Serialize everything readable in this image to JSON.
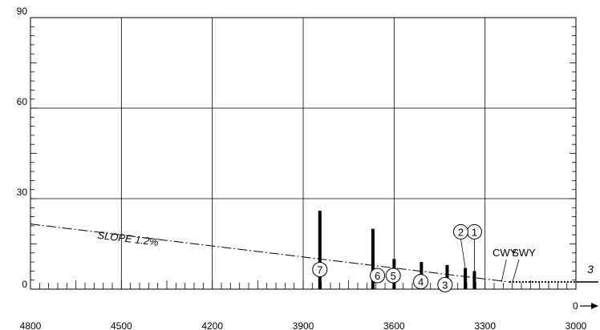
{
  "chart_data": {
    "type": "bar",
    "title": "",
    "xlabel": "",
    "ylabel": "",
    "x_reversed": true,
    "xlim": [
      4800,
      3000
    ],
    "ylim": [
      0,
      90
    ],
    "x_ticks": [
      4800,
      4500,
      4200,
      3900,
      3600,
      3300,
      3000
    ],
    "x_tick_labels": [
      "4800",
      "4500",
      "4200",
      "3900",
      "3600",
      "3300",
      "3000"
    ],
    "y_ticks": [
      0,
      30,
      60,
      90
    ],
    "y_tick_labels": [
      "0",
      "30",
      "60",
      "90"
    ],
    "grid": true,
    "slope_line": {
      "label": "SLOPE 1.2%",
      "x": [
        4800,
        3220
      ],
      "y": [
        21.6,
        2.4
      ]
    },
    "obstacles": [
      {
        "id": "1",
        "x": 3335,
        "height": 6
      },
      {
        "id": "2",
        "x": 3365,
        "height": 7
      },
      {
        "id": "3",
        "x": 3425,
        "height": 8
      },
      {
        "id": "4",
        "x": 3510,
        "height": 9
      },
      {
        "id": "5",
        "x": 3600,
        "height": 10
      },
      {
        "id": "6",
        "x": 3670,
        "height": 20
      },
      {
        "id": "7",
        "x": 3845,
        "height": 26
      }
    ],
    "untagged_obstacles": [],
    "annotations": {
      "cwy": "CWY",
      "swy": "SWY",
      "runway_end": "3",
      "origin": "0"
    }
  }
}
